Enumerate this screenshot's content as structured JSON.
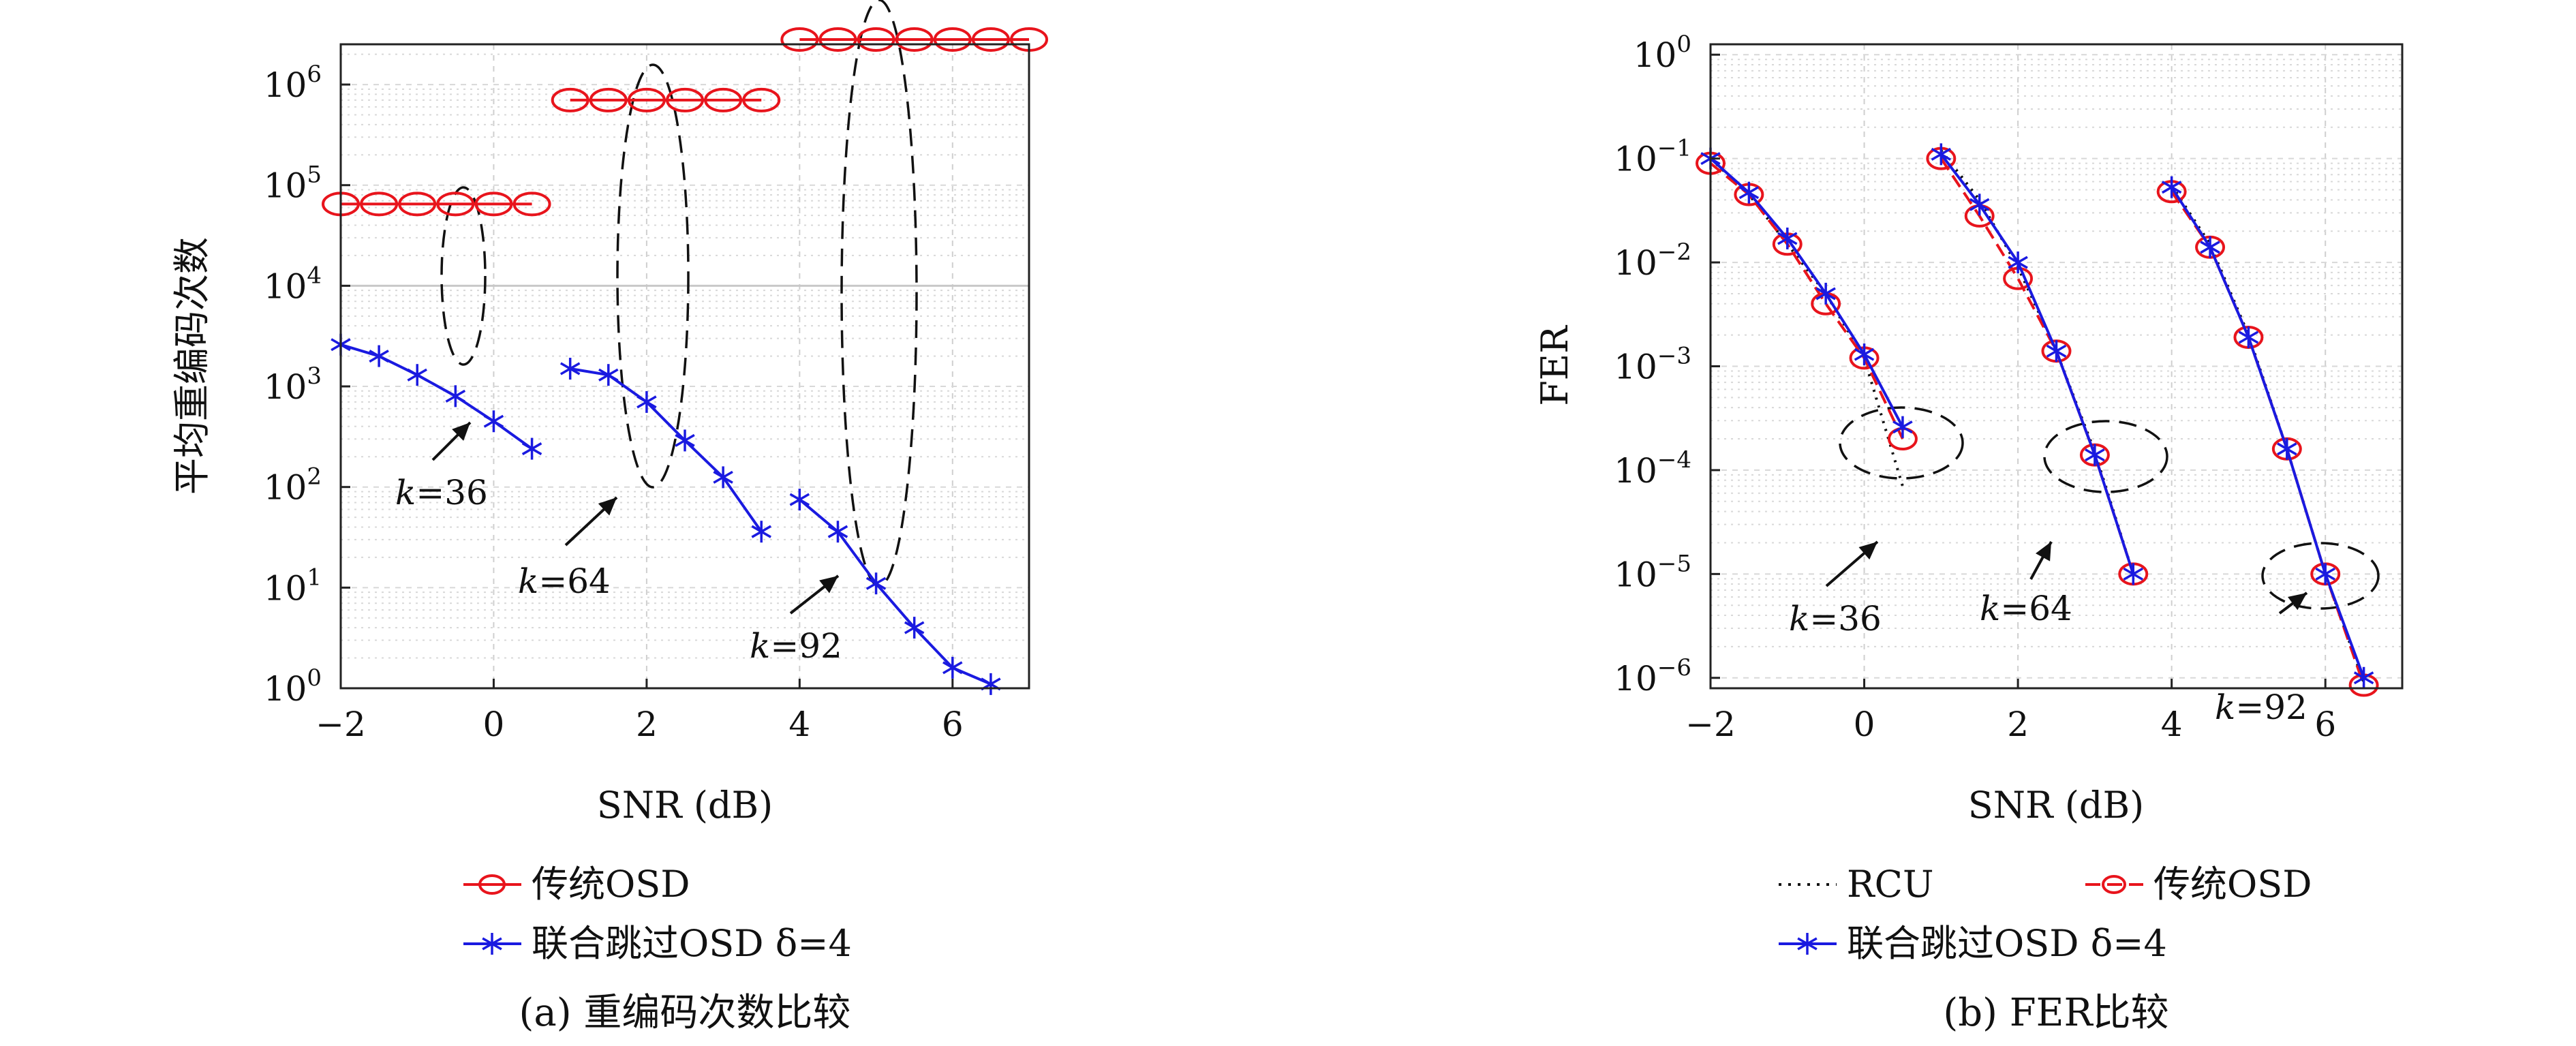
{
  "colors": {
    "traditional": "#e8141c",
    "joint": "#1a1ae0",
    "rcu": "#111111",
    "grid": "#c8c8c8"
  },
  "chart_data": [
    {
      "type": "line",
      "ylabel": "平均重编码次数",
      "xlabel": "SNR (dB)",
      "caption": "(a) 重编码次数比较",
      "xlim": [
        -2,
        7
      ],
      "ylim": [
        1,
        1000000.0
      ],
      "yscale": "log",
      "x_ticks": [
        "−2",
        "0",
        "2",
        "4",
        "6"
      ],
      "y_ticks": [
        {
          "base": "10",
          "exp": "6"
        },
        {
          "base": "10",
          "exp": "5"
        },
        {
          "base": "10",
          "exp": "4"
        },
        {
          "base": "10",
          "exp": "3"
        },
        {
          "base": "10",
          "exp": "2"
        },
        {
          "base": "10",
          "exp": "1"
        },
        {
          "base": "10",
          "exp": "0"
        }
      ],
      "legend": [
        "传统OSD",
        "联合跳过OSD δ=4"
      ],
      "series": [
        {
          "name": "传统OSD",
          "marker": "circle",
          "groups": [
            {
              "x": [
                -2,
                -1.5,
                -1,
                -0.5,
                0,
                0.5
              ],
              "y": [
                65000,
                65000,
                65000,
                65000,
                65000,
                65000
              ]
            },
            {
              "x": [
                1,
                1.5,
                2,
                2.5,
                3,
                3.5
              ],
              "y": [
                700000,
                700000,
                700000,
                700000,
                700000,
                700000
              ]
            },
            {
              "x": [
                4,
                4.5,
                5,
                5.5,
                6,
                6.5,
                7
              ],
              "y": [
                2800000,
                2800000,
                2800000,
                2800000,
                2800000,
                2800000,
                2800000
              ]
            }
          ]
        },
        {
          "name": "联合跳过OSD δ=4",
          "marker": "star",
          "groups": [
            {
              "x": [
                -2,
                -1.5,
                -1,
                -0.5,
                0,
                0.5
              ],
              "y": [
                2600,
                2000,
                1300,
                800,
                450,
                240
              ]
            },
            {
              "x": [
                1,
                1.5,
                2,
                2.5,
                3,
                3.5
              ],
              "y": [
                1500,
                1300,
                700,
                290,
                125,
                36
              ]
            },
            {
              "x": [
                4,
                4.5,
                5,
                5.5,
                6,
                6.5
              ],
              "y": [
                75,
                36,
                11,
                4,
                1.6,
                1.1
              ]
            }
          ]
        }
      ],
      "annotations": [
        {
          "text": "k=36",
          "k": "k",
          "eq": "=36"
        },
        {
          "text": "k=64",
          "k": "k",
          "eq": "=64"
        },
        {
          "text": "k=92",
          "k": "k",
          "eq": "=92"
        }
      ]
    },
    {
      "type": "line",
      "ylabel": "FER",
      "xlabel": "SNR (dB)",
      "caption": "(b) FER比较",
      "xlim": [
        -2,
        7
      ],
      "ylim": [
        8e-07,
        1
      ],
      "yscale": "log",
      "x_ticks": [
        "−2",
        "0",
        "2",
        "4",
        "6"
      ],
      "y_ticks": [
        {
          "base": "10",
          "exp": "0"
        },
        {
          "base": "10",
          "exp": "-1"
        },
        {
          "base": "10",
          "exp": "-2"
        },
        {
          "base": "10",
          "exp": "-3"
        },
        {
          "base": "10",
          "exp": "-4"
        },
        {
          "base": "10",
          "exp": "-5"
        },
        {
          "base": "10",
          "exp": "-6"
        }
      ],
      "legend": [
        "RCU",
        "传统OSD",
        "联合跳过OSD δ=4"
      ],
      "series": [
        {
          "name": "RCU",
          "marker": "none",
          "groups": [
            {
              "x": [
                -2,
                -1.5,
                -1,
                -0.5,
                0,
                0.5
              ],
              "y": [
                0.1,
                0.045,
                0.015,
                0.005,
                0.0012,
                7e-05
              ]
            },
            {
              "x": [
                1,
                1.5,
                2,
                2.5,
                3,
                3.5
              ],
              "y": [
                0.12,
                0.04,
                0.009,
                0.0014,
                0.00015,
                1e-05
              ]
            },
            {
              "x": [
                4,
                4.5,
                5,
                5.5,
                6,
                6.5
              ],
              "y": [
                0.055,
                0.015,
                0.002,
                0.00016,
                1e-05,
                9e-07
              ]
            }
          ]
        },
        {
          "name": "传统OSD",
          "marker": "circle",
          "groups": [
            {
              "x": [
                -2,
                -1.5,
                -1,
                -0.5,
                0,
                0.5
              ],
              "y": [
                0.09,
                0.045,
                0.015,
                0.004,
                0.0012,
                0.0002
              ]
            },
            {
              "x": [
                1,
                1.5,
                2,
                2.5,
                3,
                3.5
              ],
              "y": [
                0.1,
                0.028,
                0.007,
                0.0014,
                0.00014,
                1e-05
              ]
            },
            {
              "x": [
                4,
                4.5,
                5,
                5.5,
                6,
                6.5
              ],
              "y": [
                0.048,
                0.014,
                0.0019,
                0.00016,
                1e-05,
                8.5e-07
              ]
            }
          ]
        },
        {
          "name": "联合跳过OSD δ=4",
          "marker": "star",
          "groups": [
            {
              "x": [
                -2,
                -1.5,
                -1,
                -0.5,
                0,
                0.5
              ],
              "y": [
                0.1,
                0.047,
                0.017,
                0.005,
                0.0013,
                0.00026
              ]
            },
            {
              "x": [
                1,
                1.5,
                2,
                2.5,
                3,
                3.5
              ],
              "y": [
                0.11,
                0.036,
                0.01,
                0.0014,
                0.00014,
                1e-05
              ]
            },
            {
              "x": [
                4,
                4.5,
                5,
                5.5,
                6,
                6.5
              ],
              "y": [
                0.053,
                0.014,
                0.0019,
                0.00016,
                1e-05,
                1e-06
              ]
            }
          ]
        }
      ],
      "annotations": [
        {
          "text": "k=36",
          "k": "k",
          "eq": "=36"
        },
        {
          "text": "k=64",
          "k": "k",
          "eq": "=64"
        },
        {
          "text": "k=92",
          "k": "k",
          "eq": "=92"
        }
      ]
    }
  ]
}
